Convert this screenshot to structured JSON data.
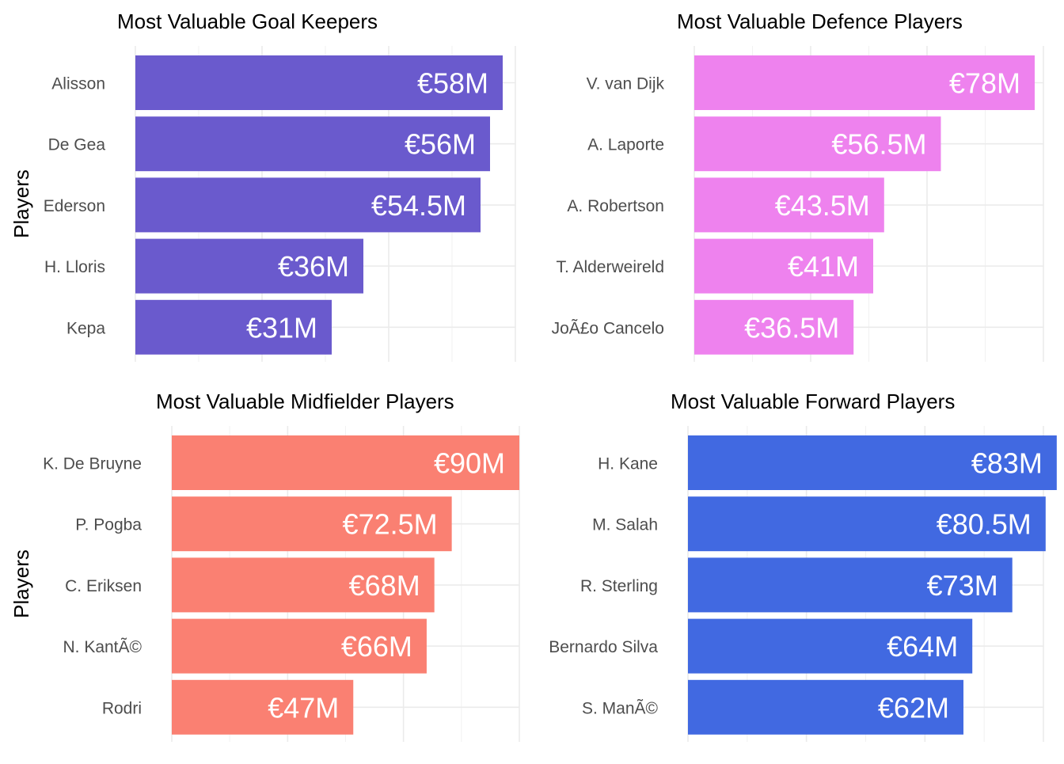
{
  "chart_data": [
    {
      "type": "bar",
      "orientation": "horizontal",
      "title": "Most Valuable Goal Keepers",
      "ylabel": "Players",
      "xlabel": "",
      "color": "#6A5ACD",
      "categories": [
        "Alisson",
        "De Gea",
        "Ederson",
        "H. Lloris",
        "Kepa"
      ],
      "values": [
        58,
        56,
        54.5,
        36,
        31
      ],
      "labels": [
        "€58M",
        "€56M",
        "€54.5M",
        "€36M",
        "€31M"
      ],
      "xlim": [
        0,
        60
      ],
      "grid": true
    },
    {
      "type": "bar",
      "orientation": "horizontal",
      "title": "Most Valuable Defence Players",
      "ylabel": "",
      "xlabel": "",
      "color": "#EE82EE",
      "categories": [
        "V. van Dijk",
        "A. Laporte",
        "A. Robertson",
        "T. Alderweireld",
        "JoÃ£o Cancelo"
      ],
      "values": [
        78,
        56.5,
        43.5,
        41,
        36.5
      ],
      "labels": [
        "€78M",
        "€56.5M",
        "€43.5M",
        "€41M",
        "€36.5M"
      ],
      "xlim": [
        0,
        80
      ],
      "grid": true
    },
    {
      "type": "bar",
      "orientation": "horizontal",
      "title": "Most Valuable Midfielder Players",
      "ylabel": "Players",
      "xlabel": "",
      "color": "#FA8072",
      "categories": [
        "K. De Bruyne",
        "P. Pogba",
        "C. Eriksen",
        "N. KantÃ©",
        "Rodri"
      ],
      "values": [
        90,
        72.5,
        68,
        66,
        47
      ],
      "labels": [
        "€90M",
        "€72.5M",
        "€68M",
        "€66M",
        "€47M"
      ],
      "xlim": [
        0,
        90
      ],
      "grid": true
    },
    {
      "type": "bar",
      "orientation": "horizontal",
      "title": "Most Valuable Forward Players",
      "ylabel": "",
      "xlabel": "",
      "color": "#4169E1",
      "categories": [
        "H. Kane",
        "M. Salah",
        "R. Sterling",
        "Bernardo Silva",
        "S. ManÃ©"
      ],
      "values": [
        83,
        80.5,
        73,
        64,
        62
      ],
      "labels": [
        "€83M",
        "€80.5M",
        "€73M",
        "€64M",
        "€62M"
      ],
      "xlim": [
        0,
        80
      ],
      "grid": true
    }
  ]
}
